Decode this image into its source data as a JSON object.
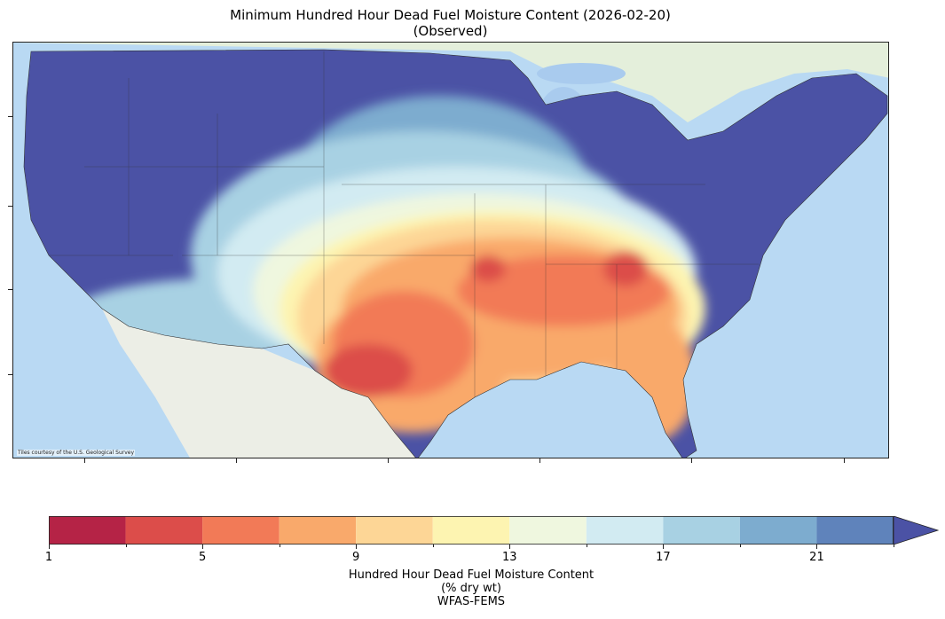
{
  "title": {
    "line1": "Minimum Hundred Hour Dead Fuel Moisture Content (2026-02-20)",
    "line2": "(Observed)"
  },
  "map": {
    "attribution": "Tiles courtesy of the U.S. Geological Survey",
    "base_map_colors": {
      "ocean": "#b9d9f3",
      "land": "#eef0e8"
    }
  },
  "colorbar": {
    "tick_labels": [
      "1",
      "5",
      "9",
      "13",
      "17",
      "21"
    ],
    "tick_values": [
      1,
      5,
      9,
      13,
      17,
      21
    ],
    "range": [
      1,
      23
    ],
    "extend": "max",
    "bins": [
      {
        "from": 1,
        "to": 3,
        "color": "#b52346"
      },
      {
        "from": 3,
        "to": 5,
        "color": "#dc4d4a"
      },
      {
        "from": 5,
        "to": 7,
        "color": "#f27a57"
      },
      {
        "from": 7,
        "to": 9,
        "color": "#f9a96b"
      },
      {
        "from": 9,
        "to": 11,
        "color": "#fdd696"
      },
      {
        "from": 11,
        "to": 13,
        "color": "#fdf4b1"
      },
      {
        "from": 13,
        "to": 15,
        "color": "#eff7df"
      },
      {
        "from": 15,
        "to": 17,
        "color": "#d2ebf2"
      },
      {
        "from": 17,
        "to": 19,
        "color": "#a8d1e3"
      },
      {
        "from": 19,
        "to": 21,
        "color": "#7daccf"
      },
      {
        "from": 21,
        "to": 23,
        "color": "#5f83bb"
      },
      {
        "from": 23,
        "to": null,
        "color": "#4b52a5"
      }
    ],
    "label_line1": "Hundred Hour Dead Fuel Moisture Content",
    "label_line2": "(% dry wt)",
    "label_line3": "WFAS-FEMS"
  }
}
